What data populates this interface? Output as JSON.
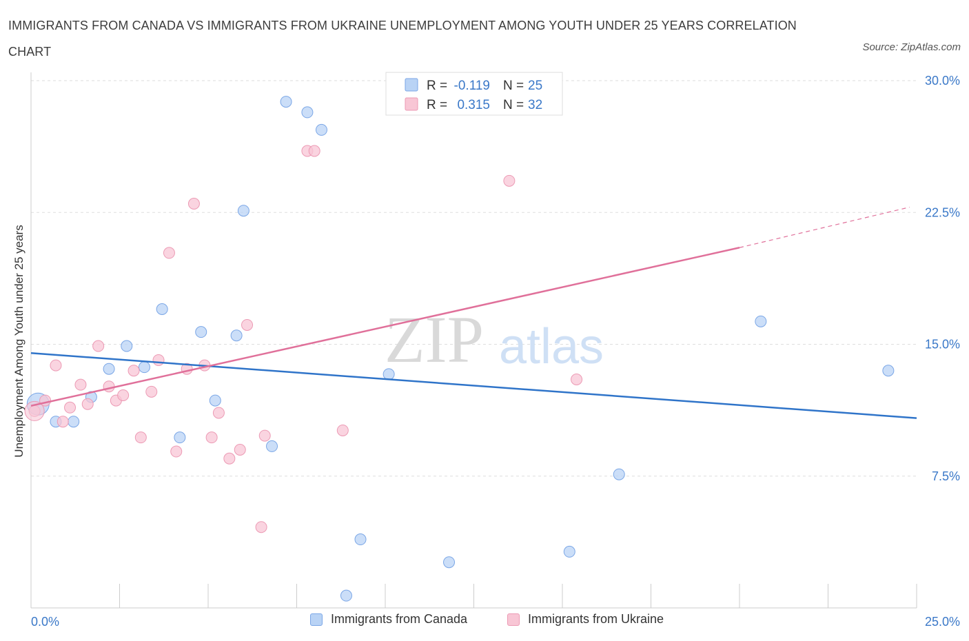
{
  "title": "IMMIGRANTS FROM CANADA VS IMMIGRANTS FROM UKRAINE UNEMPLOYMENT AMONG YOUTH UNDER 25 YEARS CORRELATION CHART",
  "source": "Source: ZipAtlas.com",
  "watermark": {
    "zip": "ZIP",
    "atlas": "atlas"
  },
  "colors": {
    "canada_fill": "#b9d3f5",
    "canada_stroke": "#7aa6e6",
    "canada_line": "#2f74c9",
    "ukraine_fill": "#f8c6d5",
    "ukraine_stroke": "#ec9ab4",
    "ukraine_line": "#e0709a",
    "tick_label": "#3a78c8",
    "grid": "#dddddd"
  },
  "legend_top": [
    {
      "r_label": "R = ",
      "r_value": "-0.119",
      "n_label": "N = ",
      "n_value": "25"
    },
    {
      "r_label": "R = ",
      "r_value": "0.315",
      "n_label": "N = ",
      "n_value": "32"
    }
  ],
  "chart_data": {
    "type": "scatter",
    "xlabel": "",
    "ylabel": "Unemployment Among Youth under 25 years",
    "xlim": [
      0,
      25
    ],
    "ylim": [
      0,
      30
    ],
    "x_tick_labels": [
      "0.0%",
      "25.0%"
    ],
    "y_ticks": [
      7.5,
      15.0,
      22.5,
      30.0
    ],
    "y_tick_labels": [
      "7.5%",
      "15.0%",
      "22.5%",
      "30.0%"
    ],
    "grid": true,
    "legend_position": "top-center and bottom",
    "series": [
      {
        "name": "Immigrants from Canada",
        "r": -0.119,
        "n": 25,
        "trend": {
          "x": [
            0,
            25
          ],
          "y": [
            14.5,
            10.8
          ]
        },
        "points": [
          [
            0.2,
            11.6
          ],
          [
            0.7,
            10.6
          ],
          [
            1.2,
            10.6
          ],
          [
            1.7,
            12.0
          ],
          [
            2.2,
            13.6
          ],
          [
            2.7,
            14.9
          ],
          [
            3.2,
            13.7
          ],
          [
            3.7,
            17.0
          ],
          [
            4.2,
            9.7
          ],
          [
            4.8,
            15.7
          ],
          [
            5.2,
            11.8
          ],
          [
            5.8,
            15.5
          ],
          [
            6.0,
            22.6
          ],
          [
            6.8,
            9.2
          ],
          [
            7.2,
            28.8
          ],
          [
            7.8,
            28.2
          ],
          [
            8.2,
            27.2
          ],
          [
            8.9,
            0.7
          ],
          [
            9.3,
            3.9
          ],
          [
            10.1,
            13.3
          ],
          [
            11.8,
            2.6
          ],
          [
            15.2,
            3.2
          ],
          [
            16.6,
            7.6
          ],
          [
            20.6,
            16.3
          ],
          [
            24.2,
            13.5
          ]
        ]
      },
      {
        "name": "Immigrants from Ukraine",
        "r": 0.315,
        "n": 32,
        "trend": {
          "x": [
            0,
            20
          ],
          "y": [
            11.5,
            20.5
          ]
        },
        "trend_dashed": {
          "x": [
            20,
            24.8
          ],
          "y": [
            20.5,
            22.8
          ]
        },
        "points": [
          [
            0.1,
            11.2
          ],
          [
            0.4,
            11.8
          ],
          [
            0.7,
            13.8
          ],
          [
            0.9,
            10.6
          ],
          [
            1.1,
            11.4
          ],
          [
            1.4,
            12.7
          ],
          [
            1.6,
            11.6
          ],
          [
            1.9,
            14.9
          ],
          [
            2.2,
            12.6
          ],
          [
            2.4,
            11.8
          ],
          [
            2.6,
            12.1
          ],
          [
            2.9,
            13.5
          ],
          [
            3.1,
            9.7
          ],
          [
            3.4,
            12.3
          ],
          [
            3.6,
            14.1
          ],
          [
            3.9,
            20.2
          ],
          [
            4.1,
            8.9
          ],
          [
            4.4,
            13.6
          ],
          [
            4.6,
            23.0
          ],
          [
            4.9,
            13.8
          ],
          [
            5.1,
            9.7
          ],
          [
            5.3,
            11.1
          ],
          [
            5.6,
            8.5
          ],
          [
            5.9,
            9.0
          ],
          [
            6.1,
            16.1
          ],
          [
            6.5,
            4.6
          ],
          [
            6.6,
            9.8
          ],
          [
            7.8,
            26.0
          ],
          [
            8.0,
            26.0
          ],
          [
            8.8,
            10.1
          ],
          [
            13.5,
            24.3
          ],
          [
            15.4,
            13.0
          ]
        ]
      }
    ]
  }
}
